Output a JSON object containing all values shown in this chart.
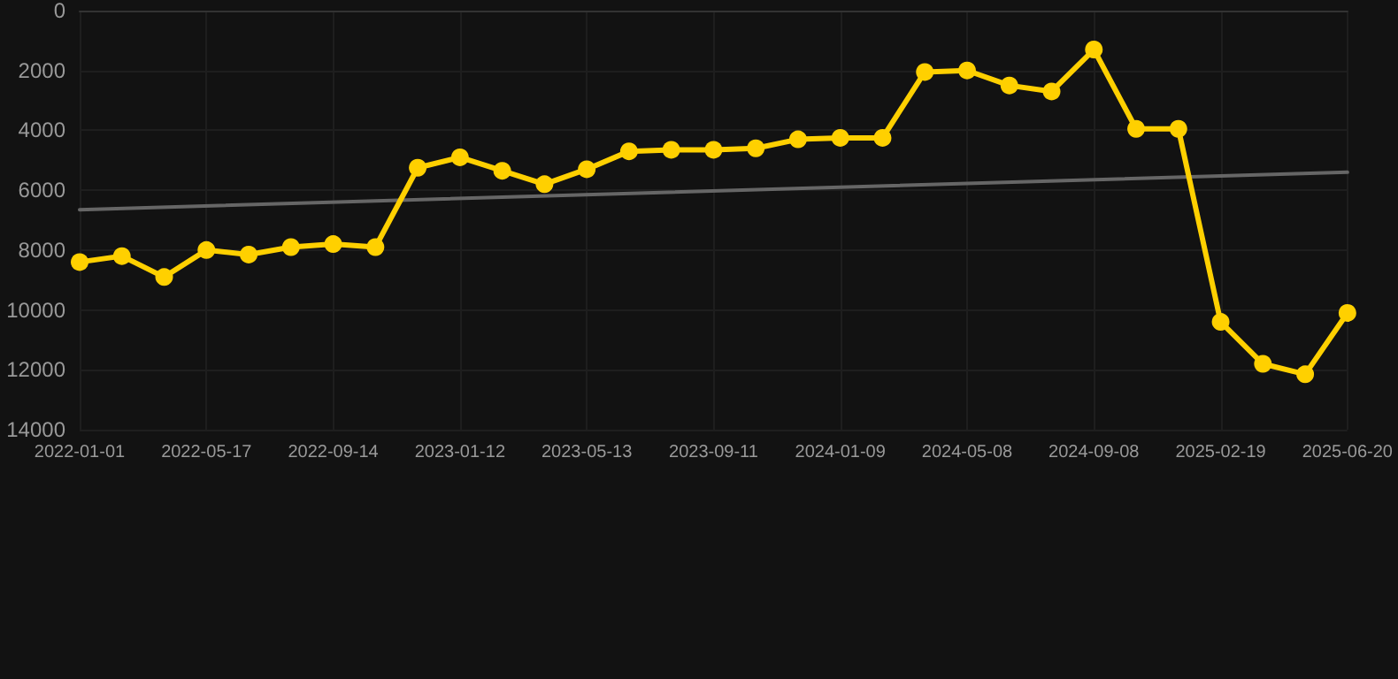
{
  "chart_data": {
    "type": "line",
    "categories": [
      "2022-01-01",
      null,
      null,
      "2022-05-17",
      null,
      null,
      "2022-09-14",
      null,
      null,
      "2023-01-12",
      null,
      null,
      "2023-05-13",
      null,
      null,
      "2023-09-11",
      null,
      null,
      "2024-01-09",
      null,
      null,
      "2024-05-08",
      null,
      null,
      "2024-09-08",
      null,
      null,
      "2025-02-19",
      null,
      null,
      "2025-06-20"
    ],
    "series": [
      {
        "color": "#ffd000",
        "values": [
          8400,
          8200,
          8900,
          8000,
          8150,
          7900,
          7800,
          7900,
          5250,
          4900,
          5350,
          5800,
          5300,
          4700,
          4650,
          4650,
          4600,
          4300,
          4250,
          4250,
          2050,
          2000,
          2500,
          2700,
          1300,
          3950,
          3950,
          10400,
          11800,
          12150,
          10100
        ]
      },
      {
        "type": "line",
        "color": "#666666",
        "values": [
          6650,
          null,
          null,
          null,
          null,
          null,
          null,
          null,
          null,
          null,
          null,
          null,
          null,
          null,
          null,
          null,
          null,
          null,
          null,
          null,
          null,
          null,
          null,
          null,
          null,
          null,
          null,
          null,
          null,
          null,
          5400
        ],
        "marker": "none"
      }
    ],
    "ylim": [
      14000,
      0
    ],
    "yticks": [
      0,
      2000,
      4000,
      6000,
      8000,
      10000,
      12000,
      14000
    ],
    "grid": true,
    "marker": "circle",
    "line_style": "solid"
  }
}
